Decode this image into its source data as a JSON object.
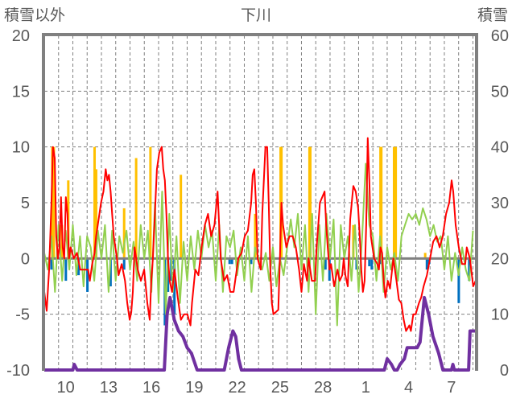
{
  "chart_data": {
    "type": "line",
    "title": "下川",
    "ylabel_left": "積雪以外",
    "ylabel_right": "積雪",
    "ylim_left": [
      -10,
      20
    ],
    "ylim_right": [
      0,
      60
    ],
    "yticks_left": [
      "20",
      "15",
      "10",
      "5",
      "0",
      "-5",
      "-10"
    ],
    "yticks_left_values": [
      20,
      15,
      10,
      5,
      0,
      -5,
      -10
    ],
    "yticks_right": [
      "60",
      "50",
      "40",
      "30",
      "20",
      "10",
      "0"
    ],
    "yticks_right_values": [
      60,
      50,
      40,
      30,
      20,
      10,
      0
    ],
    "xlim_days": [
      0,
      30.2
    ],
    "xtick_labels": [
      "10",
      "13",
      "16",
      "19",
      "22",
      "25",
      "28",
      "1",
      "4",
      "7"
    ],
    "xtick_positions_days": [
      1.5,
      4.5,
      7.5,
      10.5,
      13.5,
      16.5,
      19.5,
      22.5,
      25.5,
      28.5
    ],
    "grid": "dashed, daily vertical and every 5 units horizontal",
    "series": [
      {
        "name": "red",
        "color": "#ff0000",
        "axis": "left",
        "x": [
          0,
          0.17,
          0.34,
          0.5,
          0.61,
          0.73,
          0.84,
          0.95,
          1.06,
          1.17,
          1.29,
          1.4,
          1.51,
          1.62,
          1.73,
          1.84,
          2.07,
          2.29,
          2.52,
          2.8,
          3.07,
          3.19,
          3.35,
          3.52,
          3.63,
          3.86,
          3.97,
          4.14,
          4.3,
          4.42,
          4.53,
          4.64,
          4.75,
          4.86,
          5.09,
          5.2,
          5.42,
          5.65,
          5.81,
          5.98,
          6.09,
          6.2,
          6.32,
          6.54,
          6.76,
          6.99,
          7.21,
          7.38,
          7.49,
          7.6,
          7.88,
          8.05,
          8.22,
          8.33,
          8.44,
          8.55,
          8.66,
          8.78,
          8.94,
          9.11,
          9.34,
          9.56,
          9.78,
          10.01,
          10.23,
          10.34,
          10.57,
          10.79,
          11.01,
          11.24,
          11.46,
          11.68,
          11.91,
          12.13,
          12.24,
          12.35,
          12.58,
          12.8,
          13.02,
          13.25,
          13.47,
          13.58,
          13.81,
          14.03,
          14.25,
          14.48,
          14.59,
          14.7,
          14.81,
          14.93,
          15.04,
          15.15,
          15.26,
          15.48,
          15.6,
          15.71,
          15.82,
          15.93,
          16.04,
          16.38,
          16.49,
          16.6,
          16.71,
          16.94,
          17.16,
          17.38,
          17.61,
          17.72,
          17.83,
          18.0,
          18.17,
          18.39,
          18.5,
          18.73,
          18.95,
          19.06,
          19.29,
          19.62,
          19.73,
          19.84,
          19.96,
          20.07,
          20.29,
          20.52,
          20.68,
          20.85,
          20.96,
          21.07,
          21.24,
          21.41,
          21.63,
          21.8,
          21.97,
          22.08,
          22.19,
          22.3,
          22.42,
          22.53,
          22.64,
          22.75,
          22.86,
          22.97,
          23.09,
          23.31,
          23.42,
          23.53,
          23.65,
          23.76,
          23.87,
          24.04,
          24.2,
          24.43,
          24.65,
          24.82,
          24.99,
          25.16,
          25.32,
          25.55,
          25.66,
          25.83,
          25.99,
          26.22,
          26.38,
          26.55,
          26.78,
          27.0,
          27.22,
          27.45,
          27.67,
          27.89,
          28.12,
          28.34,
          28.51,
          28.62,
          28.79,
          29.01,
          29.24,
          29.46,
          29.57,
          29.79,
          30.02,
          30.19
        ],
        "y": [
          -3,
          -4.7,
          -1,
          5,
          10,
          9,
          2,
          0,
          1,
          5.5,
          1,
          0,
          5.5,
          4,
          0,
          1,
          0,
          0.5,
          -1,
          -1,
          -1,
          -2,
          -0.5,
          0.5,
          2,
          4,
          5,
          6,
          8,
          7,
          7.5,
          6,
          4,
          2,
          0,
          -1.5,
          -0.5,
          -2,
          -4,
          -5.5,
          -4.8,
          -3,
          1,
          -1,
          -2,
          -1,
          -4,
          -5.5,
          -2,
          0,
          8,
          9.5,
          10,
          8,
          7,
          4,
          0,
          -2,
          -3,
          -1,
          -3.5,
          -5.5,
          -5,
          -5,
          -6,
          -4,
          -1,
          -1.5,
          1,
          3,
          4,
          2,
          3,
          6,
          3,
          0,
          -2,
          -1.5,
          -3,
          -3,
          -1,
          0,
          0.5,
          2,
          2.5,
          5,
          7.5,
          8,
          5,
          0,
          -0.5,
          -1,
          4,
          10,
          10,
          5,
          -1,
          -4,
          -5,
          -4.6,
          0,
          5,
          3,
          1,
          2,
          2,
          1,
          0,
          -1,
          -3,
          -0.5,
          -2,
          0,
          -2,
          -2,
          1,
          5,
          6,
          3,
          1,
          -1,
          -0.5,
          -2.5,
          -1,
          -2,
          -1.5,
          0,
          -1.5,
          -2.5,
          3.5,
          6.5,
          6,
          4.5,
          2,
          -1,
          -3,
          -2,
          3,
          10.8,
          7,
          2,
          1,
          0,
          -0.5,
          -1,
          1,
          0.5,
          -2,
          -3.5,
          -2,
          -2.7,
          0,
          -2,
          -3.7,
          -4,
          -5.5,
          -6.5,
          -6,
          -6.5,
          -5,
          -5,
          -4,
          -3.5,
          -2.5,
          -1.5,
          0,
          1.5,
          2,
          1,
          2,
          4,
          5,
          7,
          6,
          3,
          1,
          -0.5,
          -0.5,
          1,
          0,
          -2.5,
          -2
        ]
      },
      {
        "name": "green",
        "color": "#92d050",
        "axis": "left",
        "x_step_days": 0.25,
        "values": [
          0.5,
          -1,
          2,
          -3,
          3,
          -2,
          2.5,
          -1,
          3,
          -1.5,
          2,
          -2.5,
          2,
          1,
          -2,
          2.5,
          0,
          3,
          -3,
          2.5,
          -2,
          2,
          0.5,
          2.5,
          -1,
          1.5,
          -2,
          3,
          0,
          2.5,
          -3,
          5,
          -4,
          6,
          -5,
          4,
          -3,
          2,
          -4,
          1.5,
          -2,
          2,
          -1,
          2.5,
          0,
          3,
          1,
          2.5,
          -2,
          3,
          -3,
          2,
          1,
          2.5,
          -1.5,
          1,
          -2,
          2,
          -3,
          1,
          0,
          -1,
          0.5,
          -2,
          1,
          -2.5,
          0,
          -1.5,
          1,
          3.5,
          1,
          4,
          -1,
          3,
          -3,
          4,
          -5,
          3,
          -2,
          4,
          0,
          3.5,
          -6,
          3,
          0,
          2,
          -2,
          3,
          -3,
          2,
          8.5,
          3,
          2,
          -2,
          2,
          -3,
          1,
          -1,
          0.5,
          -2,
          2,
          3,
          4,
          3.5,
          4,
          3,
          4.5,
          3.5,
          2,
          3,
          1.5,
          2,
          -1,
          2,
          -2,
          0.5,
          -1.5,
          1,
          -1,
          -2,
          2.5
        ]
      },
      {
        "name": "purple",
        "color": "#7030a0",
        "axis": "right",
        "x": [
          0,
          2.0,
          2.1,
          2.3,
          8.4,
          8.6,
          8.8,
          9.1,
          9.4,
          9.7,
          10.0,
          10.3,
          10.7,
          12.6,
          12.9,
          13.2,
          13.4,
          13.6,
          13.8,
          23.8,
          24.0,
          24.3,
          24.5,
          24.7,
          24.9,
          25.2,
          25.4,
          25.8,
          26.1,
          26.3,
          26.6,
          26.9,
          27.2,
          27.6,
          27.9,
          28.5,
          28.6,
          28.7,
          29.7,
          29.8,
          30.2
        ],
        "y": [
          0,
          0,
          1,
          0,
          0,
          10,
          13,
          9,
          7,
          6,
          4,
          3,
          0,
          0,
          4,
          7,
          6,
          2,
          0,
          0,
          2,
          1,
          0,
          0,
          1,
          2,
          4,
          4,
          4,
          5,
          13,
          10,
          6,
          3,
          0,
          0,
          1,
          0,
          0,
          7,
          7
        ]
      }
    ],
    "bars": [
      {
        "name": "orange",
        "color": "#ffc000",
        "axis": "left",
        "x": [
          0.56,
          0.67,
          1.23,
          1.68,
          3.52,
          3.63,
          5.59,
          6.43,
          7.43,
          9.56,
          14.76,
          16.54,
          16.6,
          18.56,
          18.62,
          21.63,
          23.53,
          23.59,
          24.48,
          24.6,
          26.66
        ],
        "y": [
          10,
          10,
          3,
          7,
          10,
          8,
          4.5,
          9,
          10,
          7.5,
          4,
          10,
          10,
          10,
          10,
          3,
          10,
          10,
          10,
          10,
          0.5
        ]
      },
      {
        "name": "blue",
        "color": "#0070c0",
        "axis": "left",
        "x": [
          0.5,
          1.51,
          2.4,
          3.02,
          4.64,
          5.59,
          8.44,
          8.66,
          8.89,
          9.11,
          12.97,
          13.14,
          14.48,
          19.68,
          19.96,
          21.86,
          22.75,
          22.92,
          23.53,
          26.78,
          26.94,
          29.01,
          29.74
        ],
        "y": [
          -1,
          -2,
          -1.5,
          -3,
          -2.5,
          -1,
          -6,
          -3,
          -2,
          -5,
          -0.5,
          -0.5,
          -0.5,
          -1,
          -2,
          -1,
          -0.7,
          -1,
          -0.5,
          -1,
          -0.5,
          -4,
          -2
        ]
      }
    ]
  }
}
